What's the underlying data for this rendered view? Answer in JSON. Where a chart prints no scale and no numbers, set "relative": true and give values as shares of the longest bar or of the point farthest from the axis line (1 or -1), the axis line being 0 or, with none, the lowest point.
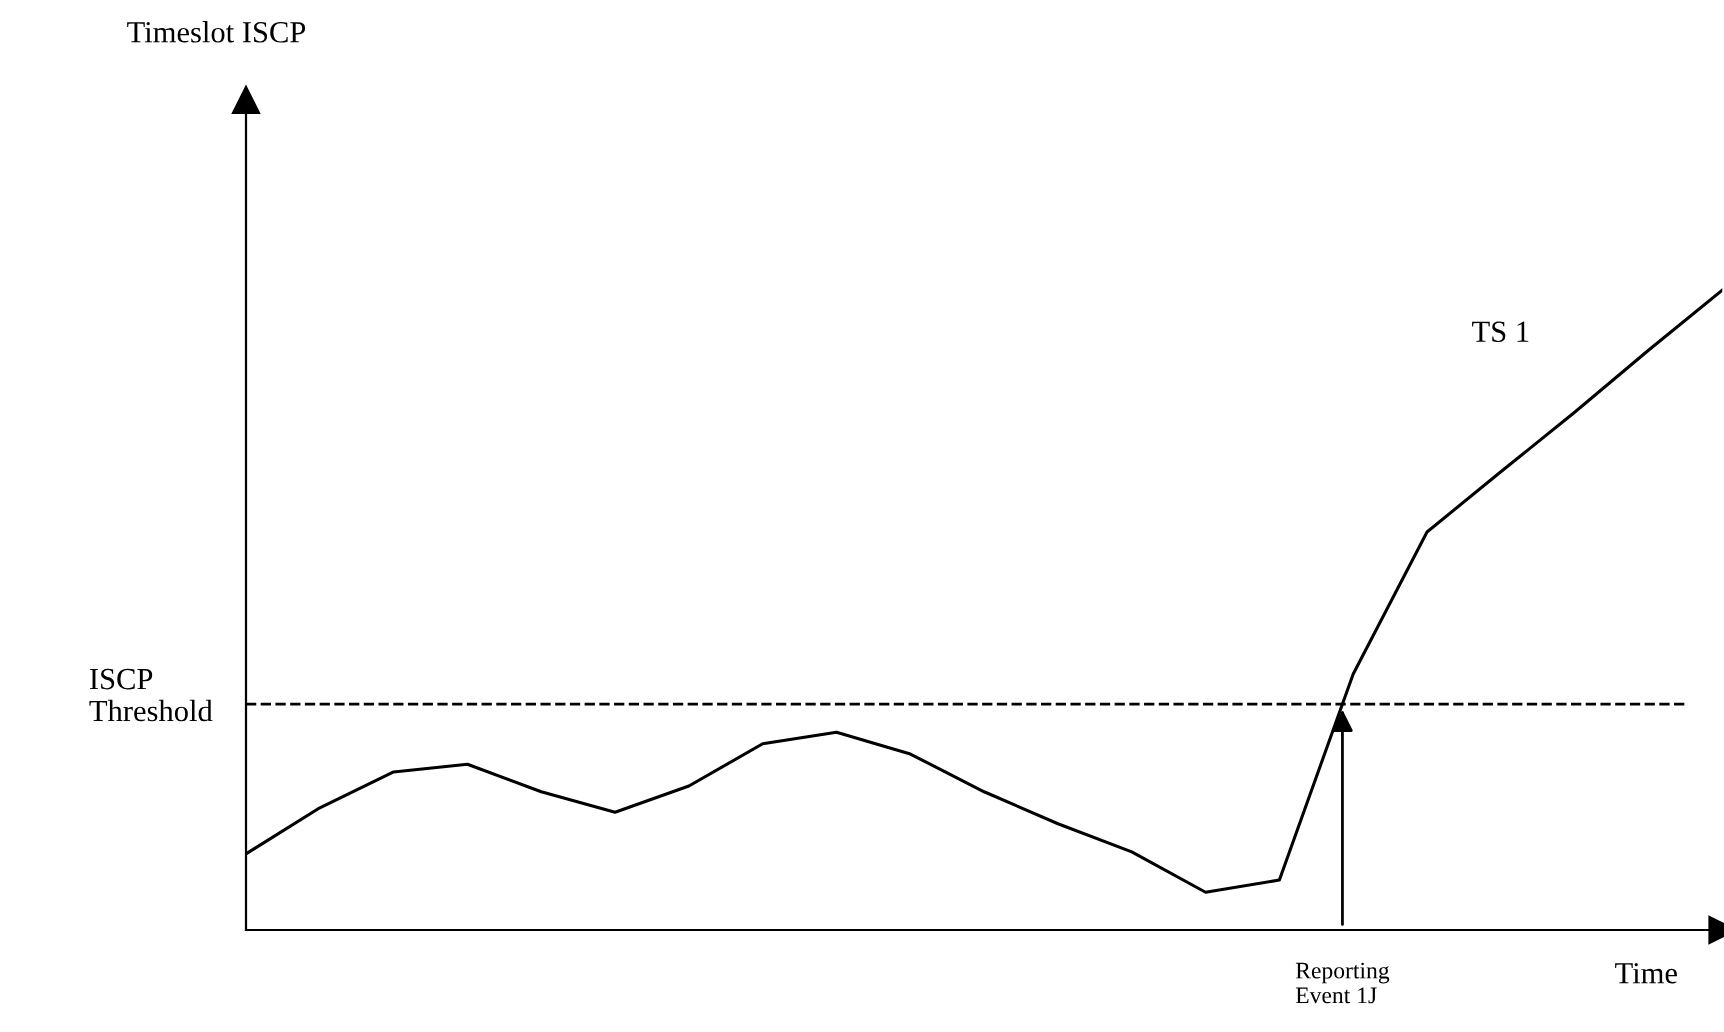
{
  "chart_data": {
    "type": "line",
    "relative": true,
    "xlabel": "Time",
    "categories": [
      null,
      null,
      null,
      null,
      null,
      null,
      null,
      null,
      null,
      null,
      null,
      null,
      null,
      null,
      null,
      null,
      null,
      null,
      null,
      null,
      null
    ],
    "series": [
      {
        "name": "TS 1",
        "color": "#000000",
        "values": [
          0.119,
          0.191,
          0.247,
          0.259,
          0.216,
          0.184,
          0.225,
          0.291,
          0.309,
          0.275,
          0.216,
          0.166,
          0.122,
          0.059,
          0.078,
          0.4,
          0.622,
          0.716,
          0.809,
          0.906,
          1
        ]
      }
    ],
    "ref_lines": [
      {
        "axis": "y",
        "value": 0.353,
        "label": "ISCP\nThreshold",
        "color": "#000000",
        "line_style": "dashed"
      }
    ],
    "annotations": [
      "Timeslot ISCP",
      "Reporting\nEvent 1J"
    ],
    "legend": false,
    "marker": "none",
    "line_style": "solid"
  }
}
